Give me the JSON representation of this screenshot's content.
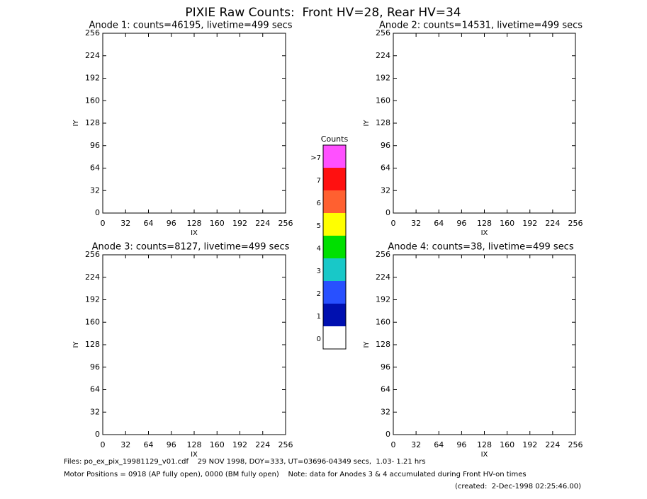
{
  "title": "PIXIE Raw Counts:  Front HV=28, Rear HV=34",
  "footer": [
    "Files: po_ex_pix_19981129_v01.cdf    29 NOV 1998, DOY=333, UT=03696-04349 secs,  1.03- 1.21 hrs",
    "Motor Positions = 0918 (AP fully open), 0000 (BM fully open)    Note: data for Anodes 3 & 4 accumulated during Front HV-on times",
    "(created:  2-Dec-1998 02:25:46.00)"
  ],
  "chart_data": [
    {
      "type": "heatmap",
      "title": "Anode 1: counts=46195, livetime=499 secs",
      "xlabel": "IX",
      "ylabel": "IY",
      "xlim": [
        0,
        256
      ],
      "ylim": [
        0,
        256
      ],
      "xticks": [
        0,
        32,
        64,
        96,
        128,
        160,
        192,
        224,
        256
      ],
      "yticks": [
        0,
        32,
        64,
        96,
        128,
        160,
        192,
        224,
        256
      ]
    },
    {
      "type": "heatmap",
      "title": "Anode 2: counts=14531, livetime=499 secs",
      "xlabel": "IX",
      "ylabel": "IY",
      "xlim": [
        0,
        256
      ],
      "ylim": [
        0,
        256
      ],
      "xticks": [
        0,
        32,
        64,
        96,
        128,
        160,
        192,
        224,
        256
      ],
      "yticks": [
        0,
        32,
        64,
        96,
        128,
        160,
        192,
        224,
        256
      ]
    },
    {
      "type": "heatmap",
      "title": "Anode 3: counts=8127, livetime=499 secs",
      "xlabel": "IX",
      "ylabel": "IY",
      "xlim": [
        0,
        256
      ],
      "ylim": [
        0,
        256
      ],
      "xticks": [
        0,
        32,
        64,
        96,
        128,
        160,
        192,
        224,
        256
      ],
      "yticks": [
        0,
        32,
        64,
        96,
        128,
        160,
        192,
        224,
        256
      ]
    },
    {
      "type": "heatmap",
      "title": "Anode 4: counts=38, livetime=499 secs",
      "xlabel": "IX",
      "ylabel": "IY",
      "xlim": [
        0,
        256
      ],
      "ylim": [
        0,
        256
      ],
      "xticks": [
        0,
        32,
        64,
        96,
        128,
        160,
        192,
        224,
        256
      ],
      "yticks": [
        0,
        32,
        64,
        96,
        128,
        160,
        192,
        224,
        256
      ]
    },
    {
      "type": "colorbar",
      "title": "Counts",
      "categories": [
        "0",
        "1",
        "2",
        "3",
        "4",
        "5",
        "6",
        "7",
        ">7"
      ],
      "colors": [
        "#ffffff",
        "#0010b0",
        "#2850ff",
        "#18c8c8",
        "#00e000",
        "#ffff00",
        "#ff6030",
        "#ff1010",
        "#ff50ff"
      ]
    }
  ]
}
